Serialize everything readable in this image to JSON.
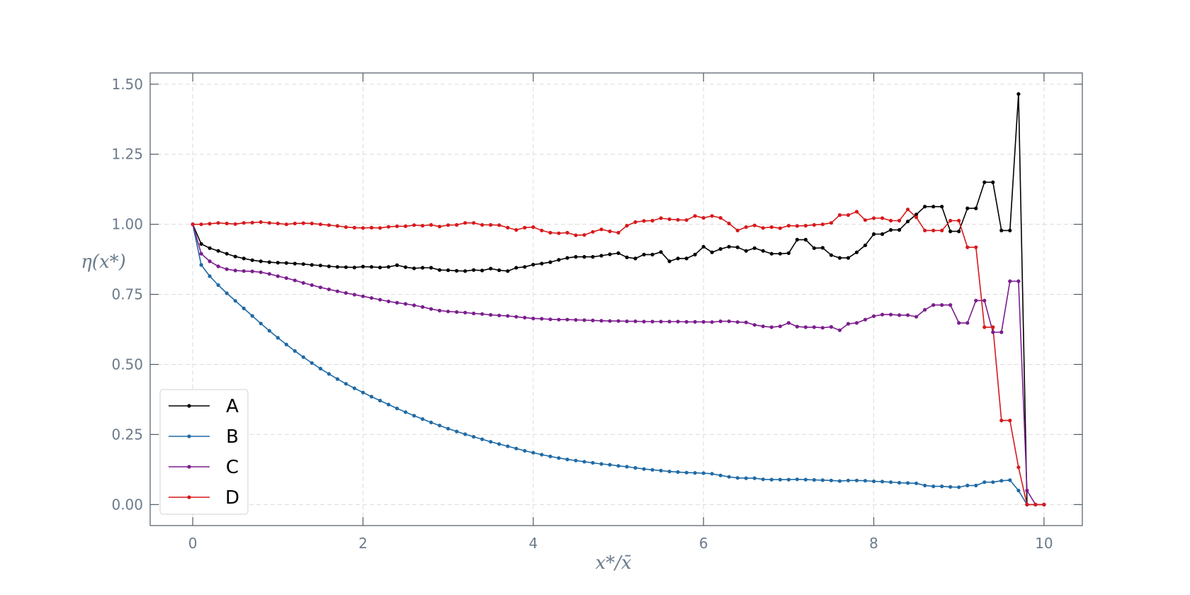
{
  "chart_data": {
    "type": "line",
    "title": "",
    "xlabel": "x*/x̄",
    "ylabel": "η(x*)",
    "xlim": [
      -0.5,
      10.45
    ],
    "ylim": [
      -0.075,
      1.54
    ],
    "xticks": [
      0,
      2,
      4,
      6,
      8,
      10
    ],
    "yticks": [
      0.0,
      0.25,
      0.5,
      0.75,
      1.0,
      1.25,
      1.5
    ],
    "xtick_labels": [
      "0",
      "2",
      "4",
      "6",
      "8",
      "10"
    ],
    "ytick_labels": [
      "0.00",
      "0.25",
      "0.50",
      "0.75",
      "1.00",
      "1.25",
      "1.50"
    ],
    "grid": true,
    "legend_position": "lower-left",
    "series": [
      {
        "name": "A",
        "color": "#000000",
        "x": [
          0,
          0.1,
          0.2,
          0.3,
          0.4,
          0.5,
          0.6,
          0.7,
          0.8,
          0.9,
          1.0,
          1.1,
          1.2,
          1.3,
          1.4,
          1.5,
          1.6,
          1.7,
          1.8,
          1.9,
          2.0,
          2.1,
          2.2,
          2.3,
          2.4,
          2.5,
          2.6,
          2.7,
          2.8,
          2.9,
          3.0,
          3.1,
          3.2,
          3.3,
          3.4,
          3.5,
          3.6,
          3.7,
          3.8,
          3.9,
          4.0,
          4.1,
          4.2,
          4.3,
          4.4,
          4.5,
          4.6,
          4.7,
          4.8,
          4.9,
          5.0,
          5.1,
          5.2,
          5.3,
          5.4,
          5.5,
          5.6,
          5.7,
          5.8,
          5.9,
          6.0,
          6.1,
          6.2,
          6.3,
          6.4,
          6.5,
          6.6,
          6.7,
          6.8,
          6.9,
          7.0,
          7.1,
          7.2,
          7.3,
          7.4,
          7.5,
          7.6,
          7.7,
          7.8,
          7.9,
          8.0,
          8.1,
          8.2,
          8.3,
          8.4,
          8.5,
          8.6,
          8.7,
          8.8,
          8.9,
          9.0,
          9.1,
          9.2,
          9.3,
          9.4,
          9.5,
          9.6,
          9.7,
          9.8,
          9.9,
          10.0
        ],
        "y": [
          1.0,
          0.93,
          0.915,
          0.905,
          0.895,
          0.885,
          0.878,
          0.872,
          0.868,
          0.865,
          0.863,
          0.862,
          0.86,
          0.858,
          0.855,
          0.853,
          0.85,
          0.848,
          0.847,
          0.846,
          0.849,
          0.848,
          0.846,
          0.848,
          0.854,
          0.847,
          0.843,
          0.845,
          0.845,
          0.837,
          0.836,
          0.834,
          0.833,
          0.837,
          0.835,
          0.842,
          0.836,
          0.833,
          0.845,
          0.848,
          0.856,
          0.86,
          0.865,
          0.873,
          0.88,
          0.884,
          0.884,
          0.884,
          0.888,
          0.893,
          0.897,
          0.882,
          0.878,
          0.892,
          0.892,
          0.901,
          0.868,
          0.878,
          0.878,
          0.892,
          0.92,
          0.9,
          0.912,
          0.92,
          0.918,
          0.905,
          0.915,
          0.905,
          0.895,
          0.895,
          0.897,
          0.945,
          0.945,
          0.915,
          0.916,
          0.89,
          0.88,
          0.88,
          0.9,
          0.925,
          0.965,
          0.965,
          0.98,
          0.98,
          1.01,
          1.035,
          1.063,
          1.063,
          1.063,
          0.975,
          0.975,
          1.057,
          1.057,
          1.15,
          1.15,
          0.978,
          0.978,
          1.465,
          0.0,
          0.0,
          0.0
        ]
      },
      {
        "name": "B",
        "color": "#1f6aa5",
        "x": [
          0,
          0.1,
          0.2,
          0.3,
          0.4,
          0.5,
          0.6,
          0.7,
          0.8,
          0.9,
          1.0,
          1.1,
          1.2,
          1.3,
          1.4,
          1.5,
          1.6,
          1.7,
          1.8,
          1.9,
          2.0,
          2.1,
          2.2,
          2.3,
          2.4,
          2.5,
          2.6,
          2.7,
          2.8,
          2.9,
          3.0,
          3.1,
          3.2,
          3.3,
          3.4,
          3.5,
          3.6,
          3.7,
          3.8,
          3.9,
          4.0,
          4.1,
          4.2,
          4.3,
          4.4,
          4.5,
          4.6,
          4.7,
          4.8,
          4.9,
          5.0,
          5.1,
          5.2,
          5.3,
          5.4,
          5.5,
          5.6,
          5.7,
          5.8,
          5.9,
          6.0,
          6.1,
          6.2,
          6.3,
          6.4,
          6.5,
          6.6,
          6.7,
          6.8,
          6.9,
          7.0,
          7.1,
          7.2,
          7.3,
          7.4,
          7.5,
          7.6,
          7.7,
          7.8,
          7.9,
          8.0,
          8.1,
          8.2,
          8.3,
          8.4,
          8.5,
          8.6,
          8.7,
          8.8,
          8.9,
          9.0,
          9.1,
          9.2,
          9.3,
          9.4,
          9.5,
          9.6,
          9.7,
          9.8,
          9.9,
          10.0
        ],
        "y": [
          1.0,
          0.855,
          0.815,
          0.783,
          0.754,
          0.727,
          0.7,
          0.673,
          0.646,
          0.62,
          0.595,
          0.571,
          0.548,
          0.526,
          0.505,
          0.485,
          0.466,
          0.448,
          0.431,
          0.415,
          0.4,
          0.385,
          0.371,
          0.357,
          0.343,
          0.33,
          0.317,
          0.305,
          0.293,
          0.282,
          0.271,
          0.261,
          0.251,
          0.242,
          0.233,
          0.224,
          0.216,
          0.208,
          0.2,
          0.192,
          0.185,
          0.178,
          0.172,
          0.166,
          0.161,
          0.157,
          0.153,
          0.149,
          0.145,
          0.142,
          0.138,
          0.135,
          0.131,
          0.127,
          0.124,
          0.121,
          0.118,
          0.116,
          0.114,
          0.113,
          0.112,
          0.11,
          0.104,
          0.099,
          0.095,
          0.094,
          0.094,
          0.09,
          0.089,
          0.089,
          0.089,
          0.09,
          0.089,
          0.088,
          0.087,
          0.086,
          0.084,
          0.086,
          0.086,
          0.085,
          0.083,
          0.082,
          0.08,
          0.078,
          0.077,
          0.076,
          0.068,
          0.065,
          0.065,
          0.063,
          0.062,
          0.068,
          0.068,
          0.08,
          0.08,
          0.085,
          0.087,
          0.05,
          0.0,
          0.0,
          0.0
        ]
      },
      {
        "name": "C",
        "color": "#7b1d8e",
        "x": [
          0,
          0.1,
          0.2,
          0.3,
          0.4,
          0.5,
          0.6,
          0.7,
          0.8,
          0.9,
          1.0,
          1.1,
          1.2,
          1.3,
          1.4,
          1.5,
          1.6,
          1.7,
          1.8,
          1.9,
          2.0,
          2.1,
          2.2,
          2.3,
          2.4,
          2.5,
          2.6,
          2.7,
          2.8,
          2.9,
          3.0,
          3.1,
          3.2,
          3.3,
          3.4,
          3.5,
          3.6,
          3.7,
          3.8,
          3.9,
          4.0,
          4.1,
          4.2,
          4.3,
          4.4,
          4.5,
          4.6,
          4.7,
          4.8,
          4.9,
          5.0,
          5.1,
          5.2,
          5.3,
          5.4,
          5.5,
          5.6,
          5.7,
          5.8,
          5.9,
          6.0,
          6.1,
          6.2,
          6.3,
          6.4,
          6.5,
          6.6,
          6.7,
          6.8,
          6.9,
          7.0,
          7.1,
          7.2,
          7.3,
          7.4,
          7.5,
          7.6,
          7.7,
          7.8,
          7.9,
          8.0,
          8.1,
          8.2,
          8.3,
          8.4,
          8.5,
          8.6,
          8.7,
          8.8,
          8.9,
          9.0,
          9.1,
          9.2,
          9.3,
          9.4,
          9.5,
          9.6,
          9.7,
          9.8,
          9.9,
          10.0
        ],
        "y": [
          1.0,
          0.895,
          0.868,
          0.85,
          0.84,
          0.835,
          0.833,
          0.832,
          0.829,
          0.823,
          0.815,
          0.808,
          0.8,
          0.791,
          0.783,
          0.775,
          0.768,
          0.761,
          0.755,
          0.749,
          0.743,
          0.737,
          0.731,
          0.725,
          0.72,
          0.716,
          0.711,
          0.705,
          0.698,
          0.692,
          0.689,
          0.687,
          0.685,
          0.682,
          0.68,
          0.677,
          0.675,
          0.673,
          0.67,
          0.667,
          0.664,
          0.663,
          0.661,
          0.66,
          0.66,
          0.659,
          0.658,
          0.657,
          0.656,
          0.655,
          0.655,
          0.654,
          0.654,
          0.653,
          0.653,
          0.653,
          0.653,
          0.653,
          0.652,
          0.652,
          0.652,
          0.651,
          0.654,
          0.654,
          0.651,
          0.65,
          0.641,
          0.636,
          0.633,
          0.636,
          0.648,
          0.635,
          0.633,
          0.633,
          0.631,
          0.634,
          0.622,
          0.645,
          0.648,
          0.66,
          0.672,
          0.678,
          0.678,
          0.676,
          0.676,
          0.67,
          0.695,
          0.712,
          0.712,
          0.712,
          0.648,
          0.648,
          0.728,
          0.728,
          0.615,
          0.615,
          0.797,
          0.797,
          0.05,
          0.0,
          0.0
        ]
      },
      {
        "name": "D",
        "color": "#d7191c",
        "x": [
          0,
          0.1,
          0.2,
          0.3,
          0.4,
          0.5,
          0.6,
          0.7,
          0.8,
          0.9,
          1.0,
          1.1,
          1.2,
          1.3,
          1.4,
          1.5,
          1.6,
          1.7,
          1.8,
          1.9,
          2.0,
          2.1,
          2.2,
          2.3,
          2.4,
          2.5,
          2.6,
          2.7,
          2.8,
          2.9,
          3.0,
          3.1,
          3.2,
          3.3,
          3.4,
          3.5,
          3.6,
          3.7,
          3.8,
          3.9,
          4.0,
          4.1,
          4.2,
          4.3,
          4.4,
          4.5,
          4.6,
          4.7,
          4.8,
          4.9,
          5.0,
          5.1,
          5.2,
          5.3,
          5.4,
          5.5,
          5.6,
          5.7,
          5.8,
          5.9,
          6.0,
          6.1,
          6.2,
          6.3,
          6.4,
          6.5,
          6.6,
          6.7,
          6.8,
          6.9,
          7.0,
          7.1,
          7.2,
          7.3,
          7.4,
          7.5,
          7.6,
          7.7,
          7.8,
          7.9,
          8.0,
          8.1,
          8.2,
          8.3,
          8.4,
          8.5,
          8.6,
          8.7,
          8.8,
          8.9,
          9.0,
          9.1,
          9.2,
          9.3,
          9.4,
          9.5,
          9.6,
          9.7,
          9.8,
          9.9,
          10.0
        ],
        "y": [
          1.0,
          1.0,
          1.002,
          1.005,
          1.003,
          1.001,
          1.005,
          1.006,
          1.008,
          1.005,
          1.003,
          1.0,
          1.003,
          1.004,
          1.003,
          1.0,
          0.997,
          0.994,
          0.99,
          0.988,
          0.987,
          0.988,
          0.987,
          0.991,
          0.993,
          0.993,
          0.997,
          0.995,
          0.998,
          0.992,
          0.997,
          0.998,
          1.005,
          1.005,
          0.998,
          0.998,
          0.997,
          0.988,
          0.98,
          0.988,
          0.99,
          0.978,
          0.97,
          0.968,
          0.97,
          0.961,
          0.962,
          0.973,
          0.982,
          0.975,
          0.97,
          0.995,
          1.008,
          1.012,
          1.013,
          1.022,
          1.018,
          1.016,
          1.015,
          1.03,
          1.023,
          1.03,
          1.023,
          1.003,
          0.978,
          0.99,
          0.996,
          0.987,
          0.99,
          0.986,
          0.995,
          0.994,
          0.995,
          0.998,
          1.0,
          1.005,
          1.033,
          1.033,
          1.045,
          1.015,
          1.022,
          1.022,
          1.013,
          1.013,
          1.053,
          1.025,
          0.978,
          0.978,
          0.978,
          1.013,
          1.013,
          0.918,
          0.918,
          0.633,
          0.633,
          0.3,
          0.3,
          0.133,
          0.0,
          0.0,
          0.0
        ]
      }
    ]
  }
}
